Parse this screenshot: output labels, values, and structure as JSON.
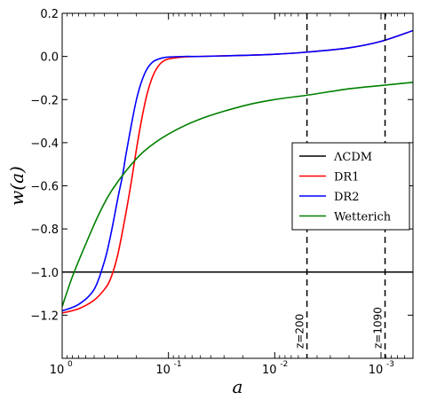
{
  "chart_data": {
    "type": "line",
    "xlabel": "a",
    "ylabel": "w(a)",
    "x_scale": "log",
    "x_reversed": true,
    "xlim": [
      1.0,
      0.0005
    ],
    "ylim": [
      -1.4,
      0.2
    ],
    "yticks": [
      {
        "value": 0.2,
        "label": "0.2"
      },
      {
        "value": 0.0,
        "label": "0.0"
      },
      {
        "value": -0.2,
        "label": "−0.2"
      },
      {
        "value": -0.4,
        "label": "−0.4"
      },
      {
        "value": -0.6,
        "label": "−0.6"
      },
      {
        "value": -0.8,
        "label": "−0.8"
      },
      {
        "value": -1.0,
        "label": "−1.0"
      },
      {
        "value": -1.2,
        "label": "−1.2"
      }
    ],
    "xticks": [
      {
        "value": 1.0,
        "base": "10",
        "exp": "0"
      },
      {
        "value": 0.1,
        "base": "10",
        "exp": "-1"
      },
      {
        "value": 0.01,
        "base": "10",
        "exp": "-2"
      },
      {
        "value": 0.001,
        "base": "10",
        "exp": "-3"
      }
    ],
    "grid": false,
    "legend_position": "right",
    "series": [
      {
        "name": "ΛCDM",
        "color": "#000000",
        "points": [
          [
            1.0,
            -1.0
          ],
          [
            0.0005,
            -1.0
          ]
        ]
      },
      {
        "name": "DR1",
        "color": "#ff0000",
        "points": [
          [
            1.0,
            -1.19
          ],
          [
            0.7,
            -1.17
          ],
          [
            0.5,
            -1.13
          ],
          [
            0.4,
            -1.08
          ],
          [
            0.35,
            -1.03
          ],
          [
            0.3,
            -0.92
          ],
          [
            0.25,
            -0.72
          ],
          [
            0.22,
            -0.56
          ],
          [
            0.2,
            -0.43
          ],
          [
            0.18,
            -0.3
          ],
          [
            0.16,
            -0.18
          ],
          [
            0.14,
            -0.09
          ],
          [
            0.12,
            -0.035
          ],
          [
            0.1,
            -0.012
          ],
          [
            0.07,
            -0.002
          ],
          [
            0.05,
            0.0
          ],
          [
            0.02,
            0.005
          ],
          [
            0.01,
            0.01
          ],
          [
            0.005,
            0.02
          ],
          [
            0.002,
            0.04
          ],
          [
            0.001,
            0.07
          ],
          [
            0.0005,
            0.12
          ]
        ]
      },
      {
        "name": "DR2",
        "color": "#0000ff",
        "points": [
          [
            1.0,
            -1.18
          ],
          [
            0.7,
            -1.15
          ],
          [
            0.5,
            -1.08
          ],
          [
            0.4,
            -0.95
          ],
          [
            0.35,
            -0.83
          ],
          [
            0.3,
            -0.66
          ],
          [
            0.27,
            -0.55
          ],
          [
            0.25,
            -0.45
          ],
          [
            0.22,
            -0.3
          ],
          [
            0.2,
            -0.2
          ],
          [
            0.18,
            -0.12
          ],
          [
            0.16,
            -0.06
          ],
          [
            0.14,
            -0.025
          ],
          [
            0.12,
            -0.01
          ],
          [
            0.1,
            -0.003
          ],
          [
            0.07,
            0.0
          ],
          [
            0.05,
            0.0
          ],
          [
            0.02,
            0.005
          ],
          [
            0.01,
            0.01
          ],
          [
            0.005,
            0.02
          ],
          [
            0.002,
            0.04
          ],
          [
            0.001,
            0.07
          ],
          [
            0.0005,
            0.12
          ]
        ]
      },
      {
        "name": "Wetterich",
        "color": "#008000",
        "points": [
          [
            1.0,
            -1.16
          ],
          [
            0.8,
            -1.02
          ],
          [
            0.6,
            -0.87
          ],
          [
            0.45,
            -0.73
          ],
          [
            0.35,
            -0.63
          ],
          [
            0.25,
            -0.53
          ],
          [
            0.17,
            -0.44
          ],
          [
            0.1,
            -0.36
          ],
          [
            0.05,
            -0.29
          ],
          [
            0.02,
            -0.23
          ],
          [
            0.01,
            -0.2
          ],
          [
            0.005,
            -0.18
          ],
          [
            0.002,
            -0.15
          ],
          [
            0.001,
            -0.135
          ],
          [
            0.0005,
            -0.12
          ]
        ]
      }
    ],
    "annotations": [
      {
        "label": "z=200",
        "x": 0.004975
      },
      {
        "label": "z=1090",
        "x": 0.000916
      }
    ]
  }
}
